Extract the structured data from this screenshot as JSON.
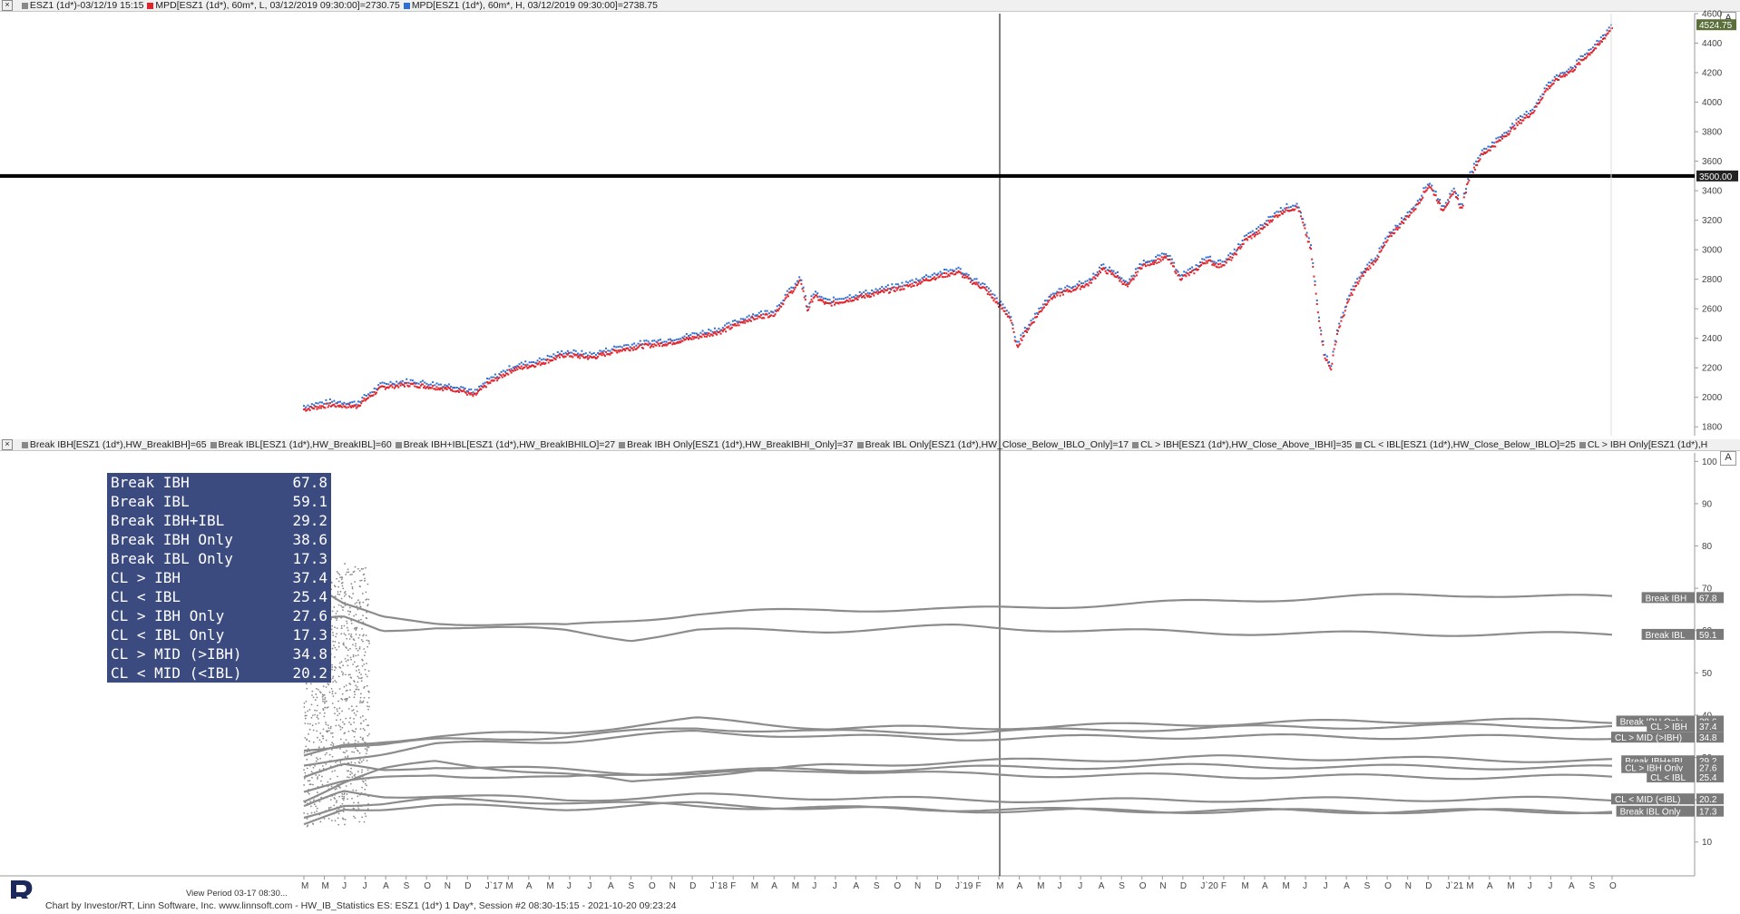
{
  "window": {
    "top_header": {
      "close": "×",
      "items": [
        {
          "color": "",
          "text": "ESZ1 (1d*)-03/12/19 15:15"
        },
        {
          "color": "#e0242c",
          "text": "MPD[ESZ1 (1d*), 60m*, L, 03/12/2019 09:30:00]=2730.75"
        },
        {
          "color": "#2f6fd0",
          "text": "MPD[ESZ1 (1d*), 60m*, H, 03/12/2019 09:30:00]=2738.75"
        }
      ]
    },
    "bottom_header": {
      "close": "×",
      "items": [
        {
          "text": "Break IBH[ESZ1 (1d*),HW_BreakIBH]=65"
        },
        {
          "text": "Break IBL[ESZ1 (1d*),HW_BreakIBL]=60"
        },
        {
          "text": "Break IBH+IBL[ESZ1 (1d*),HW_BreakIBHILO]=27"
        },
        {
          "text": "Break IBH Only[ESZ1 (1d*),HW_BreakIBHI_Only]=37"
        },
        {
          "text": "Break IBL Only[ESZ1 (1d*),HW_Close_Below_IBLO_Only]=17"
        },
        {
          "text": "CL > IBH[ESZ1 (1d*),HW_Close_Above_IBHI]=35"
        },
        {
          "text": "CL < IBL[ESZ1 (1d*),HW_Close_Below_IBLO]=25"
        },
        {
          "text": "CL > IBH Only[ESZ1 (1d*),H"
        }
      ]
    },
    "axis_button": "A",
    "view_period": "View Period 03-17 08:30...",
    "footer": "Chart by Investor/RT, Linn Software, Inc. www.linnsoft.com - HW_IB_Statistics ES: ESZ1 (1d*) 1 Day*, Session #2 08:30-15:15 - 2021-10-20 09:23:24"
  },
  "stats_table": [
    {
      "label": "Break IBH",
      "value": "67.8"
    },
    {
      "label": "Break IBL",
      "value": "59.1"
    },
    {
      "label": "Break IBH+IBL",
      "value": "29.2"
    },
    {
      "label": "Break IBH Only",
      "value": "38.6"
    },
    {
      "label": "Break IBL Only",
      "value": "17.3"
    },
    {
      "label": "CL > IBH",
      "value": "37.4"
    },
    {
      "label": "CL < IBL",
      "value": "25.4"
    },
    {
      "label": "CL > IBH Only",
      "value": "27.6"
    },
    {
      "label": "CL < IBL Only",
      "value": "17.3"
    },
    {
      "label": "CL > MID (>IBH)",
      "value": "34.8"
    },
    {
      "label": "CL < MID (<IBL)",
      "value": "20.2"
    }
  ],
  "chart_data": [
    {
      "type": "scatter",
      "panel": "price",
      "y_ticks": [
        1800,
        2000,
        2200,
        2400,
        2600,
        2800,
        3000,
        3200,
        3400,
        3600,
        3800,
        4000,
        4200,
        4400,
        4600
      ],
      "ylim": [
        1740,
        4600
      ],
      "xlim": [
        0,
        1
      ],
      "horizontal_line": {
        "value": 3500,
        "label": "3500.00"
      },
      "last_price_label": "4524.75",
      "series": [
        {
          "name": "MPD L",
          "color": "#e0242c"
        },
        {
          "name": "MPD H",
          "color": "#2f6fd0"
        }
      ],
      "price_path": [
        [
          0.0,
          1930
        ],
        [
          0.02,
          1960
        ],
        [
          0.04,
          1950
        ],
        [
          0.06,
          2080
        ],
        [
          0.08,
          2100
        ],
        [
          0.1,
          2080
        ],
        [
          0.12,
          2060
        ],
        [
          0.13,
          2020
        ],
        [
          0.14,
          2100
        ],
        [
          0.16,
          2200
        ],
        [
          0.18,
          2240
        ],
        [
          0.2,
          2300
        ],
        [
          0.22,
          2280
        ],
        [
          0.24,
          2330
        ],
        [
          0.26,
          2360
        ],
        [
          0.28,
          2380
        ],
        [
          0.3,
          2420
        ],
        [
          0.32,
          2460
        ],
        [
          0.34,
          2540
        ],
        [
          0.36,
          2580
        ],
        [
          0.37,
          2700
        ],
        [
          0.38,
          2800
        ],
        [
          0.385,
          2600
        ],
        [
          0.39,
          2700
        ],
        [
          0.4,
          2640
        ],
        [
          0.42,
          2680
        ],
        [
          0.44,
          2720
        ],
        [
          0.46,
          2760
        ],
        [
          0.48,
          2820
        ],
        [
          0.5,
          2860
        ],
        [
          0.51,
          2800
        ],
        [
          0.52,
          2750
        ],
        [
          0.53,
          2650
        ],
        [
          0.54,
          2550
        ],
        [
          0.545,
          2350
        ],
        [
          0.55,
          2430
        ],
        [
          0.56,
          2560
        ],
        [
          0.57,
          2680
        ],
        [
          0.58,
          2720
        ],
        [
          0.6,
          2780
        ],
        [
          0.61,
          2880
        ],
        [
          0.62,
          2840
        ],
        [
          0.63,
          2760
        ],
        [
          0.64,
          2900
        ],
        [
          0.66,
          2960
        ],
        [
          0.67,
          2820
        ],
        [
          0.68,
          2860
        ],
        [
          0.69,
          2940
        ],
        [
          0.7,
          2900
        ],
        [
          0.71,
          2960
        ],
        [
          0.72,
          3080
        ],
        [
          0.73,
          3130
        ],
        [
          0.74,
          3220
        ],
        [
          0.75,
          3280
        ],
        [
          0.76,
          3300
        ],
        [
          0.77,
          3000
        ],
        [
          0.775,
          2600
        ],
        [
          0.78,
          2300
        ],
        [
          0.785,
          2200
        ],
        [
          0.79,
          2450
        ],
        [
          0.8,
          2700
        ],
        [
          0.81,
          2850
        ],
        [
          0.82,
          2950
        ],
        [
          0.83,
          3100
        ],
        [
          0.84,
          3200
        ],
        [
          0.85,
          3300
        ],
        [
          0.86,
          3450
        ],
        [
          0.865,
          3380
        ],
        [
          0.87,
          3280
        ],
        [
          0.88,
          3400
        ],
        [
          0.885,
          3280
        ],
        [
          0.89,
          3480
        ],
        [
          0.9,
          3650
        ],
        [
          0.91,
          3720
        ],
        [
          0.92,
          3800
        ],
        [
          0.93,
          3880
        ],
        [
          0.94,
          3950
        ],
        [
          0.95,
          4100
        ],
        [
          0.96,
          4180
        ],
        [
          0.97,
          4230
        ],
        [
          0.98,
          4320
        ],
        [
          0.99,
          4400
        ],
        [
          1.0,
          4520
        ]
      ]
    },
    {
      "type": "line",
      "panel": "statistics",
      "y_ticks": [
        10,
        20,
        30,
        40,
        50,
        60,
        70,
        80,
        90,
        100
      ],
      "ylim": [
        2,
        102
      ],
      "xlim": [
        0,
        1
      ],
      "series": [
        {
          "name": "Break IBH",
          "label": "Break IBH",
          "value": 67.8,
          "path": [
            [
              0,
              72
            ],
            [
              0.03,
              66
            ],
            [
              0.06,
              63
            ],
            [
              0.1,
              62
            ],
            [
              0.2,
              61
            ],
            [
              0.3,
              64
            ],
            [
              0.4,
              65
            ],
            [
              0.5,
              65
            ],
            [
              0.6,
              66
            ],
            [
              0.7,
              67
            ],
            [
              0.8,
              68
            ],
            [
              0.9,
              68.5
            ],
            [
              1.0,
              67.8
            ]
          ]
        },
        {
          "name": "Break IBL",
          "label": "Break IBL",
          "value": 59.1,
          "path": [
            [
              0,
              62
            ],
            [
              0.03,
              63
            ],
            [
              0.06,
              60
            ],
            [
              0.1,
              61
            ],
            [
              0.2,
              60
            ],
            [
              0.25,
              58
            ],
            [
              0.3,
              60
            ],
            [
              0.4,
              60
            ],
            [
              0.5,
              61
            ],
            [
              0.6,
              60
            ],
            [
              0.7,
              59.5
            ],
            [
              0.8,
              59.3
            ],
            [
              0.9,
              59.2
            ],
            [
              1.0,
              59.1
            ]
          ]
        },
        {
          "name": "Break IBH Only",
          "label": "Break IBH Only",
          "value": 38.6,
          "path": [
            [
              0,
              30
            ],
            [
              0.03,
              33
            ],
            [
              0.06,
              34
            ],
            [
              0.1,
              35
            ],
            [
              0.2,
              36
            ],
            [
              0.3,
              39
            ],
            [
              0.4,
              37
            ],
            [
              0.5,
              37
            ],
            [
              0.6,
              37.5
            ],
            [
              0.7,
              38
            ],
            [
              0.8,
              38.5
            ],
            [
              0.9,
              38.7
            ],
            [
              1.0,
              38.6
            ]
          ]
        },
        {
          "name": "CL > MID (>IBH)",
          "label": "CL > MID (>IBH)",
          "value": 34.8,
          "path": [
            [
              0,
              28
            ],
            [
              0.03,
              30
            ],
            [
              0.06,
              31
            ],
            [
              0.1,
              33
            ],
            [
              0.2,
              34
            ],
            [
              0.3,
              36
            ],
            [
              0.4,
              35
            ],
            [
              0.5,
              34.5
            ],
            [
              0.6,
              34.8
            ],
            [
              0.7,
              35
            ],
            [
              0.8,
              34.9
            ],
            [
              0.9,
              34.8
            ],
            [
              1.0,
              34.8
            ]
          ]
        },
        {
          "name": "CL > IBH",
          "label": "CL > IBH",
          "value": 37.4,
          "path": [
            [
              0,
              32
            ],
            [
              0.03,
              33
            ],
            [
              0.06,
              33
            ],
            [
              0.1,
              34
            ],
            [
              0.2,
              35
            ],
            [
              0.3,
              37
            ],
            [
              0.4,
              36
            ],
            [
              0.5,
              36
            ],
            [
              0.6,
              36.5
            ],
            [
              0.7,
              37
            ],
            [
              0.8,
              37.3
            ],
            [
              0.9,
              37.5
            ],
            [
              1.0,
              37.4
            ]
          ]
        },
        {
          "name": "Break IBH+IBL",
          "label": "Break IBH+IBL",
          "value": 29.2,
          "path": [
            [
              0,
              20
            ],
            [
              0.03,
              24
            ],
            [
              0.06,
              27
            ],
            [
              0.1,
              29
            ],
            [
              0.2,
              26
            ],
            [
              0.25,
              24
            ],
            [
              0.3,
              26
            ],
            [
              0.4,
              28
            ],
            [
              0.5,
              29
            ],
            [
              0.6,
              29.5
            ],
            [
              0.7,
              30
            ],
            [
              0.8,
              29.8
            ],
            [
              0.9,
              29.5
            ],
            [
              1.0,
              29.2
            ]
          ]
        },
        {
          "name": "CL > IBH Only",
          "label": "CL > IBH Only",
          "value": 27.6,
          "path": [
            [
              0,
              22
            ],
            [
              0.03,
              24
            ],
            [
              0.06,
              25
            ],
            [
              0.1,
              26
            ],
            [
              0.2,
              25
            ],
            [
              0.3,
              27
            ],
            [
              0.4,
              27
            ],
            [
              0.5,
              27.5
            ],
            [
              0.6,
              27.8
            ],
            [
              0.7,
              28
            ],
            [
              0.8,
              27.8
            ],
            [
              0.9,
              27.7
            ],
            [
              1.0,
              27.6
            ]
          ]
        },
        {
          "name": "CL < IBL",
          "label": "CL < IBL",
          "value": 25.4,
          "path": [
            [
              0,
              25
            ],
            [
              0.03,
              28
            ],
            [
              0.06,
              27
            ],
            [
              0.1,
              28
            ],
            [
              0.2,
              27
            ],
            [
              0.3,
              26
            ],
            [
              0.4,
              27
            ],
            [
              0.5,
              26
            ],
            [
              0.6,
              25.8
            ],
            [
              0.7,
              25.6
            ],
            [
              0.8,
              25.5
            ],
            [
              0.9,
              25.4
            ],
            [
              1.0,
              25.4
            ]
          ]
        },
        {
          "name": "CL < MID (<IBL)",
          "label": "CL < MID (<IBL)",
          "value": 20.2,
          "path": [
            [
              0,
              18
            ],
            [
              0.03,
              22
            ],
            [
              0.06,
              21
            ],
            [
              0.1,
              21
            ],
            [
              0.2,
              20
            ],
            [
              0.3,
              21
            ],
            [
              0.4,
              20.5
            ],
            [
              0.5,
              20
            ],
            [
              0.6,
              19.8
            ],
            [
              0.7,
              20
            ],
            [
              0.8,
              20.1
            ],
            [
              0.9,
              20.2
            ],
            [
              1.0,
              20.2
            ]
          ]
        },
        {
          "name": "Break IBL Only",
          "label": "Break IBL Only",
          "value": 17.3,
          "path": [
            [
              0,
              14
            ],
            [
              0.03,
              18
            ],
            [
              0.06,
              18
            ],
            [
              0.1,
              18.5
            ],
            [
              0.2,
              18
            ],
            [
              0.3,
              19
            ],
            [
              0.4,
              18
            ],
            [
              0.5,
              17.5
            ],
            [
              0.6,
              17.4
            ],
            [
              0.7,
              17.3
            ],
            [
              0.8,
              17.3
            ],
            [
              0.9,
              17.3
            ],
            [
              1.0,
              17.3
            ]
          ]
        },
        {
          "name": "CL < IBL Only",
          "label": "",
          "value": 17.3,
          "path": [
            [
              0,
              16
            ],
            [
              0.03,
              19
            ],
            [
              0.06,
              19
            ],
            [
              0.1,
              20
            ],
            [
              0.2,
              19.5
            ],
            [
              0.3,
              18.5
            ],
            [
              0.4,
              18
            ],
            [
              0.5,
              17.8
            ],
            [
              0.6,
              17.5
            ],
            [
              0.7,
              17.4
            ],
            [
              0.8,
              17.3
            ],
            [
              0.9,
              17.3
            ],
            [
              1.0,
              17.3
            ]
          ]
        }
      ]
    }
  ],
  "x_axis_ticks": [
    "M",
    "M",
    "J",
    "J",
    "A",
    "S",
    "O",
    "N",
    "D",
    "J`17",
    "M",
    "A",
    "M",
    "J",
    "J",
    "A",
    "S",
    "O",
    "N",
    "D",
    "J`18",
    "F",
    "M",
    "A",
    "M",
    "J",
    "J",
    "A",
    "S",
    "O",
    "N",
    "D",
    "J`19",
    "F",
    "M",
    "A",
    "M",
    "J",
    "J",
    "A",
    "S",
    "O",
    "N",
    "D",
    "J`20",
    "F",
    "M",
    "A",
    "M",
    "J",
    "J",
    "A",
    "S",
    "O",
    "N",
    "D",
    "J`21",
    "M",
    "A",
    "M",
    "J",
    "J",
    "A",
    "S",
    "O"
  ]
}
